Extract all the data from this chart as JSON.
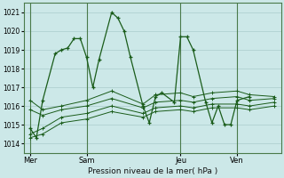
{
  "xlabel": "Pression niveau de la mer( hPa )",
  "background_color": "#cce8e8",
  "plot_bg_color": "#cce8e8",
  "grid_color": "#aacccc",
  "line_color": "#1a5c1a",
  "ylim": [
    1013.5,
    1021.5
  ],
  "yticks": [
    1014,
    1015,
    1016,
    1017,
    1018,
    1019,
    1020,
    1021
  ],
  "xtick_labels": [
    "Mer",
    "Sam",
    "Jeu",
    "Ven"
  ],
  "xtick_positions": [
    0,
    9,
    24,
    33
  ],
  "vline_positions": [
    0,
    9,
    24,
    33
  ],
  "xlim": [
    -1,
    40
  ],
  "series_main": [
    0,
    1014.8,
    1,
    1014.3,
    2,
    1016.3,
    4,
    1018.8,
    5,
    1019.0,
    6,
    1019.1,
    7,
    1019.6,
    8,
    1019.6,
    9,
    1018.6,
    10,
    1017.0,
    11,
    1018.5,
    13,
    1021.0,
    14,
    1020.7,
    15,
    1020.0,
    16,
    1018.6,
    18,
    1016.0,
    19,
    1015.1,
    20,
    1016.5,
    21,
    1016.7,
    23,
    1016.2,
    24,
    1019.7,
    25,
    1019.7,
    26,
    1019.0,
    28,
    1016.2,
    29,
    1015.1,
    30,
    1016.0,
    31,
    1015.0,
    32,
    1015.0,
    33,
    1016.3,
    35,
    1016.5
  ],
  "series_flat": [
    [
      [
        0,
        1016.3
      ],
      [
        2,
        1015.8
      ],
      [
        5,
        1016.0
      ],
      [
        9,
        1016.3
      ],
      [
        13,
        1016.8
      ],
      [
        18,
        1016.1
      ],
      [
        20,
        1016.6
      ],
      [
        24,
        1016.7
      ],
      [
        26,
        1016.5
      ],
      [
        29,
        1016.7
      ],
      [
        33,
        1016.8
      ],
      [
        35,
        1016.6
      ],
      [
        39,
        1016.5
      ]
    ],
    [
      [
        0,
        1015.8
      ],
      [
        2,
        1015.5
      ],
      [
        5,
        1015.8
      ],
      [
        9,
        1016.0
      ],
      [
        13,
        1016.4
      ],
      [
        18,
        1015.9
      ],
      [
        20,
        1016.2
      ],
      [
        24,
        1016.3
      ],
      [
        26,
        1016.2
      ],
      [
        29,
        1016.4
      ],
      [
        33,
        1016.5
      ],
      [
        35,
        1016.3
      ],
      [
        39,
        1016.4
      ]
    ],
    [
      [
        0,
        1014.5
      ],
      [
        2,
        1014.8
      ],
      [
        5,
        1015.4
      ],
      [
        9,
        1015.6
      ],
      [
        13,
        1016.0
      ],
      [
        18,
        1015.6
      ],
      [
        20,
        1015.9
      ],
      [
        24,
        1016.0
      ],
      [
        26,
        1015.9
      ],
      [
        29,
        1016.1
      ],
      [
        33,
        1016.1
      ],
      [
        35,
        1016.0
      ],
      [
        39,
        1016.2
      ]
    ],
    [
      [
        0,
        1014.3
      ],
      [
        2,
        1014.5
      ],
      [
        5,
        1015.1
      ],
      [
        9,
        1015.3
      ],
      [
        13,
        1015.7
      ],
      [
        18,
        1015.4
      ],
      [
        20,
        1015.7
      ],
      [
        24,
        1015.8
      ],
      [
        26,
        1015.7
      ],
      [
        29,
        1015.9
      ],
      [
        33,
        1015.9
      ],
      [
        35,
        1015.8
      ],
      [
        39,
        1016.0
      ]
    ]
  ]
}
